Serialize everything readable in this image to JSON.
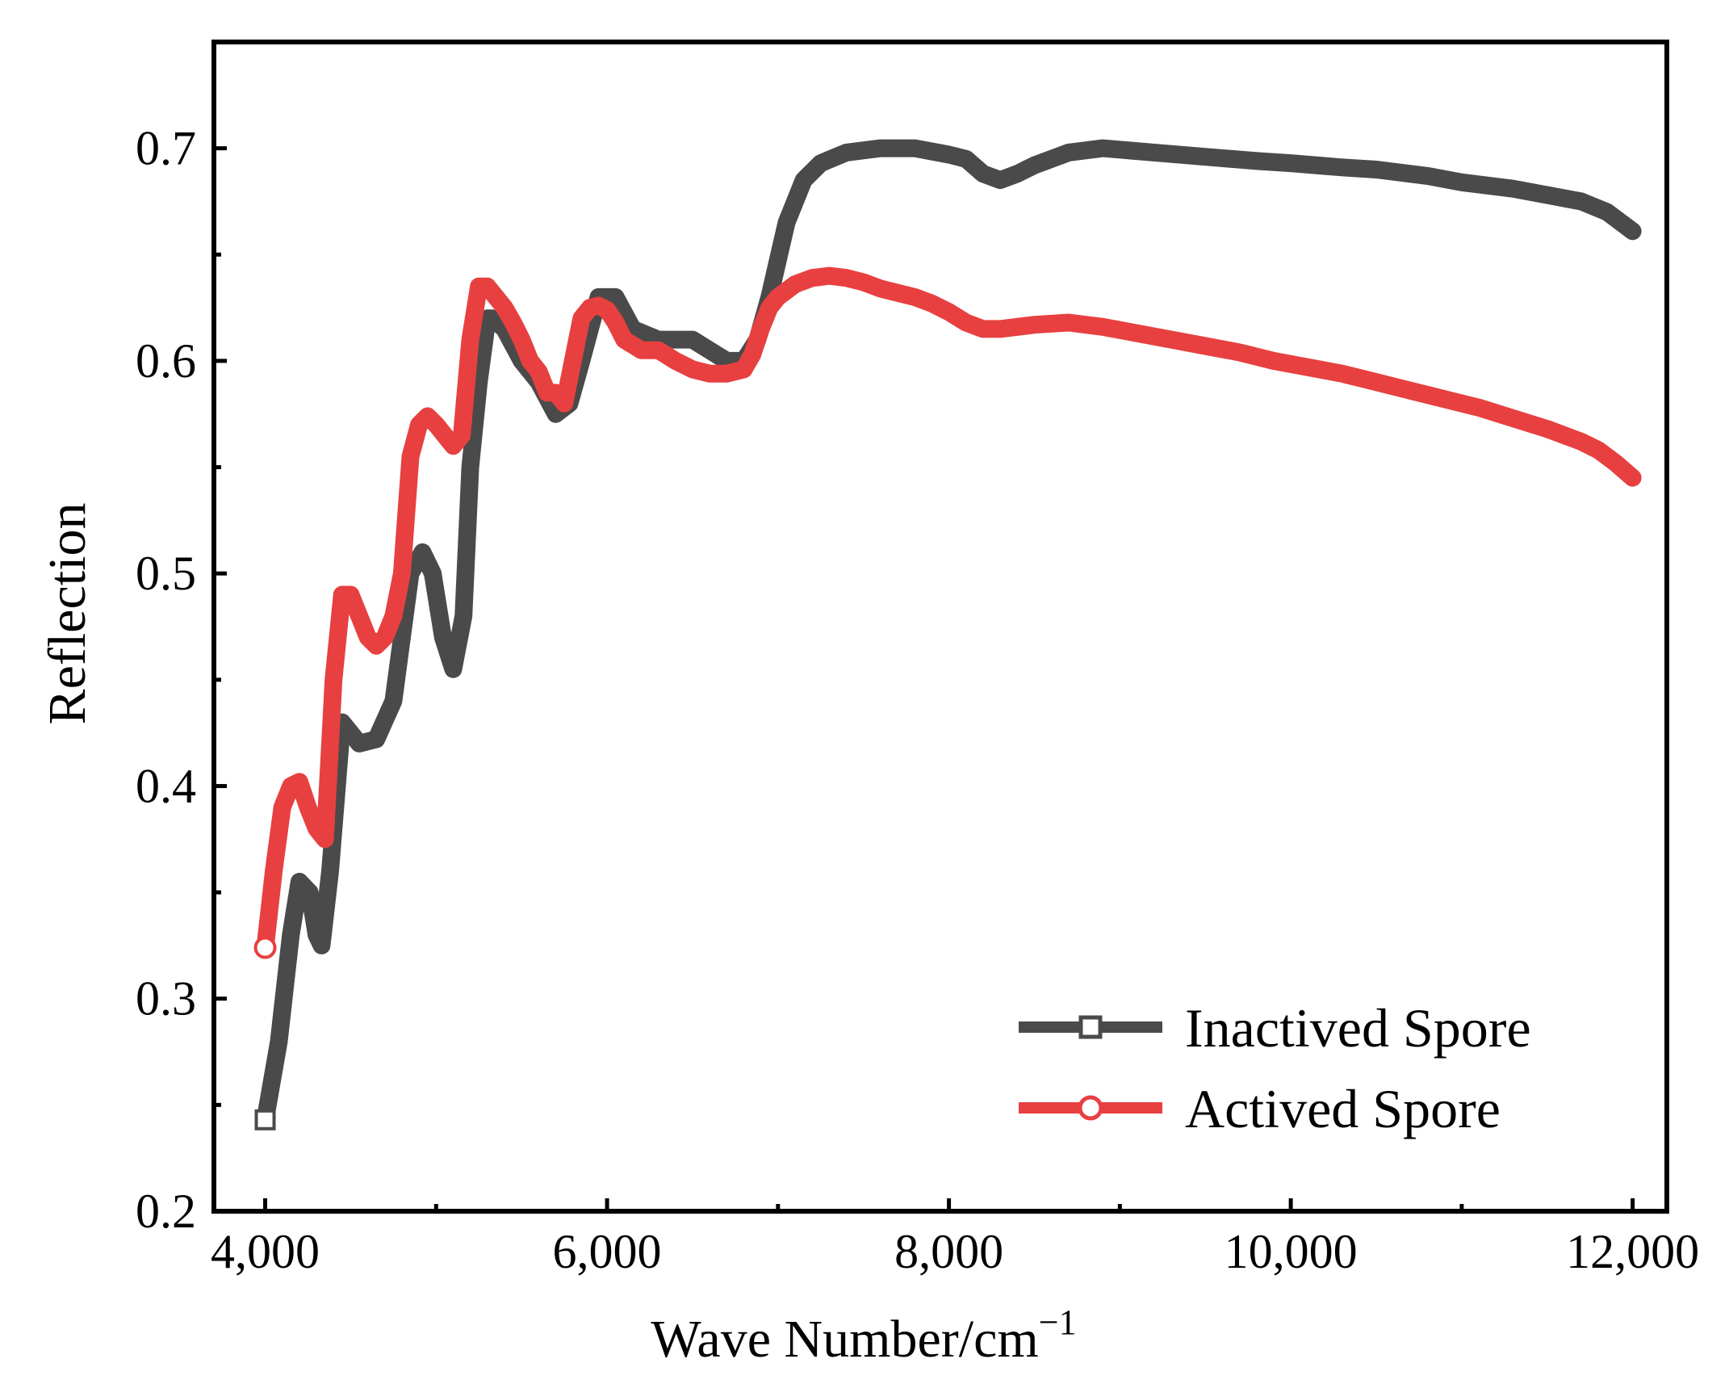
{
  "chart_data": {
    "type": "line",
    "title": "",
    "xlabel": "Wave Number/cm",
    "xlabel_superscript": "−1",
    "ylabel": "Reflection",
    "xlim": [
      3700,
      12200
    ],
    "ylim": [
      0.2,
      0.75
    ],
    "x_ticks": [
      4000,
      6000,
      8000,
      10000,
      12000
    ],
    "x_tick_labels": [
      "4,000",
      "6,000",
      "8,000",
      "10,000",
      "12,000"
    ],
    "x_minor_ticks": [
      5000,
      7000,
      9000,
      11000
    ],
    "y_ticks": [
      0.2,
      0.3,
      0.4,
      0.5,
      0.6,
      0.7
    ],
    "y_tick_labels": [
      "0.2",
      "0.3",
      "0.4",
      "0.5",
      "0.6",
      "0.7"
    ],
    "y_minor_ticks": [
      0.25,
      0.35,
      0.45,
      0.55,
      0.65
    ],
    "legend_position": "bottom-right",
    "series": [
      {
        "name": "Inactived Spore",
        "color": "#4a4a4a",
        "marker": "square",
        "x": [
          4000,
          4080,
          4150,
          4200,
          4260,
          4300,
          4330,
          4380,
          4450,
          4550,
          4650,
          4750,
          4850,
          4920,
          4980,
          5040,
          5100,
          5160,
          5200,
          5250,
          5300,
          5330,
          5400,
          5500,
          5600,
          5700,
          5780,
          5850,
          5950,
          6050,
          6150,
          6300,
          6500,
          6700,
          6800,
          6880,
          6950,
          7050,
          7150,
          7250,
          7400,
          7600,
          7800,
          8000,
          8100,
          8200,
          8300,
          8400,
          8500,
          8700,
          8900,
          9200,
          9500,
          9800,
          10000,
          10300,
          10500,
          10800,
          11000,
          11300,
          11500,
          11700,
          11850,
          11950,
          12000
        ],
        "values": [
          0.243,
          0.28,
          0.33,
          0.355,
          0.35,
          0.33,
          0.325,
          0.36,
          0.43,
          0.42,
          0.422,
          0.44,
          0.5,
          0.51,
          0.5,
          0.47,
          0.455,
          0.48,
          0.55,
          0.59,
          0.62,
          0.62,
          0.615,
          0.6,
          0.59,
          0.575,
          0.58,
          0.6,
          0.63,
          0.63,
          0.615,
          0.61,
          0.61,
          0.6,
          0.6,
          0.61,
          0.63,
          0.665,
          0.685,
          0.693,
          0.698,
          0.7,
          0.7,
          0.697,
          0.695,
          0.688,
          0.685,
          0.688,
          0.692,
          0.698,
          0.7,
          0.698,
          0.696,
          0.694,
          0.693,
          0.691,
          0.69,
          0.687,
          0.684,
          0.681,
          0.678,
          0.675,
          0.67,
          0.664,
          0.661
        ]
      },
      {
        "name": "Actived Spore",
        "color": "#e84040",
        "marker": "circle",
        "x": [
          4000,
          4050,
          4100,
          4150,
          4200,
          4250,
          4300,
          4350,
          4400,
          4450,
          4500,
          4550,
          4600,
          4650,
          4700,
          4750,
          4800,
          4850,
          4900,
          4950,
          5000,
          5050,
          5100,
          5150,
          5200,
          5250,
          5300,
          5350,
          5400,
          5450,
          5500,
          5550,
          5600,
          5650,
          5700,
          5750,
          5800,
          5850,
          5900,
          5950,
          6000,
          6050,
          6100,
          6200,
          6300,
          6400,
          6500,
          6600,
          6700,
          6800,
          6850,
          6900,
          6950,
          7000,
          7100,
          7200,
          7300,
          7400,
          7500,
          7600,
          7700,
          7800,
          7900,
          8000,
          8100,
          8200,
          8300,
          8400,
          8500,
          8700,
          8900,
          9100,
          9300,
          9500,
          9700,
          9900,
          10100,
          10300,
          10500,
          10700,
          10900,
          11100,
          11300,
          11500,
          11700,
          11800,
          11900,
          12000
        ],
        "values": [
          0.324,
          0.36,
          0.39,
          0.4,
          0.402,
          0.39,
          0.38,
          0.375,
          0.45,
          0.49,
          0.49,
          0.48,
          0.47,
          0.466,
          0.47,
          0.48,
          0.5,
          0.555,
          0.57,
          0.574,
          0.57,
          0.565,
          0.56,
          0.565,
          0.61,
          0.635,
          0.635,
          0.63,
          0.625,
          0.618,
          0.61,
          0.6,
          0.595,
          0.585,
          0.585,
          0.58,
          0.6,
          0.62,
          0.625,
          0.626,
          0.624,
          0.618,
          0.61,
          0.605,
          0.605,
          0.6,
          0.596,
          0.594,
          0.594,
          0.596,
          0.603,
          0.615,
          0.625,
          0.63,
          0.636,
          0.639,
          0.64,
          0.639,
          0.637,
          0.634,
          0.632,
          0.63,
          0.627,
          0.623,
          0.618,
          0.615,
          0.615,
          0.616,
          0.617,
          0.618,
          0.616,
          0.613,
          0.61,
          0.607,
          0.604,
          0.6,
          0.597,
          0.594,
          0.59,
          0.586,
          0.582,
          0.578,
          0.573,
          0.568,
          0.562,
          0.558,
          0.552,
          0.545
        ]
      }
    ]
  }
}
